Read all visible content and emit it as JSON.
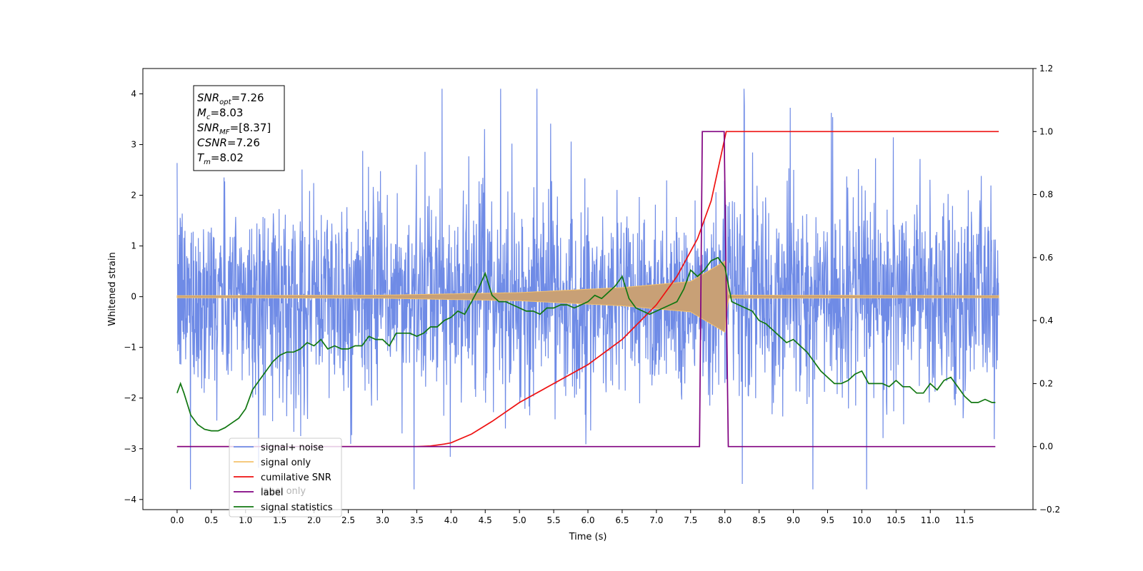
{
  "chart_data": {
    "type": "line",
    "title": "",
    "xlabel": "Time (s)",
    "ylabel": "Whitened strain",
    "xlim": [
      -0.5,
      12.5
    ],
    "ylim": [
      -4.2,
      4.5
    ],
    "y2lim": [
      -0.2,
      1.2
    ],
    "grid": false,
    "legend_position": "bottom-left",
    "x_ticks": [
      "0.0",
      "0.5",
      "1.0",
      "1.5",
      "2.0",
      "2.5",
      "3.0",
      "3.5",
      "4.0",
      "4.5",
      "5.0",
      "5.5",
      "6.0",
      "6.5",
      "7.0",
      "7.5",
      "8.0",
      "8.5",
      "9.0",
      "9.5",
      "10.0",
      "10.5",
      "11.0",
      "11.5"
    ],
    "y_ticks": [
      "−4",
      "−3",
      "−2",
      "−1",
      "0",
      "1",
      "2",
      "3",
      "4"
    ],
    "y2_ticks": [
      "−0.2",
      "0.0",
      "0.2",
      "0.4",
      "0.6",
      "0.8",
      "1.0",
      "1.2"
    ],
    "annotation": {
      "lines": [
        {
          "base": "SNR",
          "sub": "opt",
          "rest": "=7.26"
        },
        {
          "base": "M",
          "sub": "c",
          "rest": "=8.03"
        },
        {
          "base": "SNR",
          "sub": "MF",
          "rest": "=[8.37]"
        },
        {
          "base": "CSNR",
          "sub": "",
          "rest": "=7.26"
        },
        {
          "base": "T",
          "sub": "m",
          "rest": "=8.02"
        }
      ]
    },
    "legend": [
      "signal+ noise",
      "signal only",
      "cumilative SNR",
      "label",
      "signal statistics"
    ],
    "legend_hidden_text": [
      "label only"
    ],
    "colors": {
      "noise": "#6f8be6",
      "signal": "#f5c26b",
      "signal_fill": "#c8a076",
      "csnr": "#ee1111",
      "label": "#800080",
      "stats": "#117711"
    },
    "series": [
      {
        "name": "signal+ noise",
        "axis": "left",
        "description_range": [
          -3.8,
          4.1
        ],
        "x_range": [
          0.0,
          12.0
        ]
      },
      {
        "name": "signal only",
        "axis": "left",
        "amplitude_points": {
          "x": [
            0.0,
            3.0,
            5.0,
            6.5,
            7.5,
            8.0,
            8.05,
            12.0
          ],
          "amp": [
            0.02,
            0.03,
            0.08,
            0.18,
            0.3,
            0.7,
            0.03,
            0.02
          ]
        }
      },
      {
        "name": "cumilative SNR",
        "axis": "right",
        "x": [
          0.0,
          3.5,
          3.7,
          3.9,
          4.0,
          4.3,
          4.6,
          5.0,
          5.5,
          6.0,
          6.5,
          7.0,
          7.3,
          7.6,
          7.8,
          8.0,
          8.02,
          12.0
        ],
        "y": [
          0.0,
          0.0,
          0.002,
          0.008,
          0.012,
          0.04,
          0.08,
          0.14,
          0.2,
          0.26,
          0.34,
          0.45,
          0.54,
          0.66,
          0.78,
          0.98,
          1.0,
          1.0
        ]
      },
      {
        "name": "label",
        "axis": "right",
        "x": [
          0.0,
          7.63,
          7.67,
          7.99,
          8.05,
          11.95
        ],
        "y": [
          0.0,
          0.0,
          1.0,
          1.0,
          0.0,
          0.0
        ]
      },
      {
        "name": "signal statistics",
        "axis": "right",
        "x": [
          0.0,
          0.05,
          0.1,
          0.2,
          0.3,
          0.4,
          0.5,
          0.6,
          0.7,
          0.8,
          0.9,
          1.0,
          1.1,
          1.2,
          1.3,
          1.4,
          1.5,
          1.6,
          1.7,
          1.8,
          1.9,
          2.0,
          2.1,
          2.2,
          2.3,
          2.4,
          2.5,
          2.6,
          2.7,
          2.8,
          2.9,
          3.0,
          3.1,
          3.2,
          3.3,
          3.4,
          3.5,
          3.6,
          3.7,
          3.8,
          3.9,
          4.0,
          4.1,
          4.2,
          4.3,
          4.4,
          4.5,
          4.6,
          4.7,
          4.8,
          4.9,
          5.0,
          5.1,
          5.2,
          5.3,
          5.4,
          5.5,
          5.6,
          5.7,
          5.8,
          5.9,
          6.0,
          6.1,
          6.2,
          6.3,
          6.4,
          6.5,
          6.6,
          6.7,
          6.8,
          6.9,
          7.0,
          7.1,
          7.2,
          7.3,
          7.4,
          7.5,
          7.6,
          7.7,
          7.8,
          7.9,
          8.0,
          8.1,
          8.2,
          8.3,
          8.4,
          8.5,
          8.6,
          8.7,
          8.8,
          8.9,
          9.0,
          9.1,
          9.2,
          9.3,
          9.4,
          9.5,
          9.6,
          9.7,
          9.8,
          9.9,
          10.0,
          10.1,
          10.2,
          10.3,
          10.4,
          10.5,
          10.6,
          10.7,
          10.8,
          10.9,
          11.0,
          11.1,
          11.2,
          11.3,
          11.4,
          11.5,
          11.6,
          11.7,
          11.8,
          11.9,
          11.95
        ],
        "y": [
          0.17,
          0.2,
          0.17,
          0.1,
          0.07,
          0.055,
          0.05,
          0.05,
          0.06,
          0.075,
          0.09,
          0.12,
          0.18,
          0.21,
          0.24,
          0.27,
          0.29,
          0.3,
          0.3,
          0.31,
          0.33,
          0.32,
          0.34,
          0.31,
          0.32,
          0.31,
          0.31,
          0.32,
          0.32,
          0.35,
          0.34,
          0.34,
          0.32,
          0.36,
          0.36,
          0.36,
          0.35,
          0.36,
          0.38,
          0.38,
          0.4,
          0.41,
          0.43,
          0.42,
          0.46,
          0.5,
          0.55,
          0.48,
          0.46,
          0.46,
          0.45,
          0.44,
          0.43,
          0.43,
          0.42,
          0.44,
          0.44,
          0.45,
          0.45,
          0.44,
          0.45,
          0.46,
          0.48,
          0.47,
          0.49,
          0.51,
          0.54,
          0.47,
          0.44,
          0.43,
          0.42,
          0.43,
          0.44,
          0.45,
          0.46,
          0.5,
          0.56,
          0.54,
          0.56,
          0.59,
          0.6,
          0.57,
          0.46,
          0.45,
          0.44,
          0.43,
          0.4,
          0.39,
          0.37,
          0.35,
          0.33,
          0.34,
          0.32,
          0.3,
          0.27,
          0.24,
          0.22,
          0.2,
          0.2,
          0.21,
          0.23,
          0.24,
          0.2,
          0.2,
          0.2,
          0.19,
          0.21,
          0.19,
          0.19,
          0.17,
          0.17,
          0.2,
          0.18,
          0.21,
          0.22,
          0.19,
          0.16,
          0.14,
          0.14,
          0.15,
          0.14,
          0.14
        ]
      }
    ]
  }
}
